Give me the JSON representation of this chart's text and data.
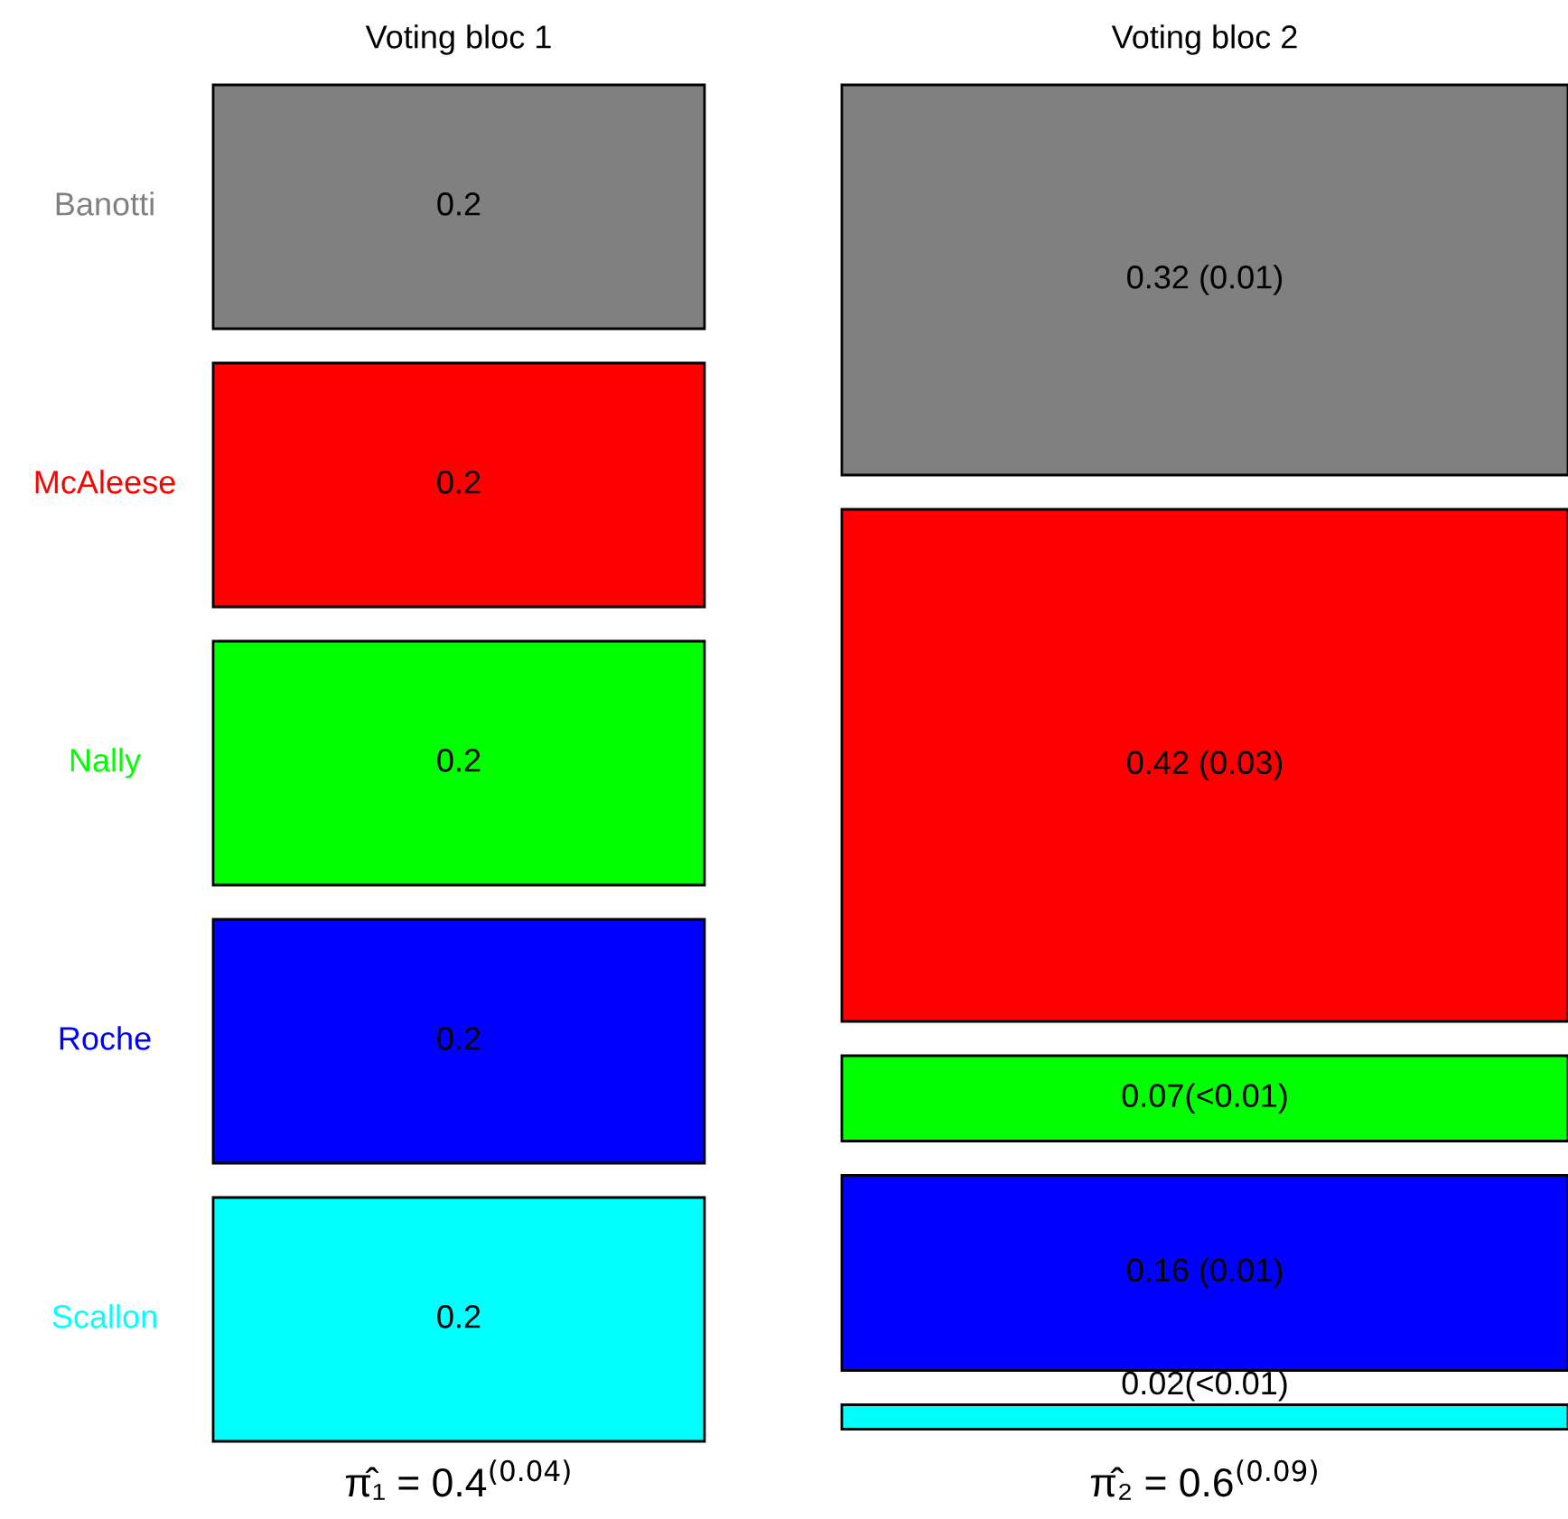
{
  "chart_data": {
    "type": "other",
    "categories": [
      "Voting bloc 1",
      "Voting bloc 2"
    ],
    "series": [
      {
        "name": "Banotti",
        "color": "#808080",
        "values": [
          0.2,
          0.32
        ],
        "value_labels": [
          "0.2",
          "0.32 (0.01)"
        ]
      },
      {
        "name": "McAleese",
        "color": "#ff0000",
        "values": [
          0.2,
          0.42
        ],
        "value_labels": [
          "0.2",
          "0.42 (0.03)"
        ]
      },
      {
        "name": "Nally",
        "color": "#00ff00",
        "values": [
          0.2,
          0.07
        ],
        "value_labels": [
          "0.2",
          "0.07(<0.01)"
        ]
      },
      {
        "name": "Roche",
        "color": "#0000ff",
        "values": [
          0.2,
          0.16
        ],
        "value_labels": [
          "0.2",
          "0.16 (0.01)"
        ]
      },
      {
        "name": "Scallon",
        "color": "#00ffff",
        "values": [
          0.2,
          0.02
        ],
        "value_labels": [
          "0.2",
          "0.02(<0.01)"
        ]
      }
    ],
    "annotations": [
      "π̂₁ = 0.4$^{(0.04)}$",
      "π̂₂ = 0.6$^{(0.09)}$"
    ]
  }
}
